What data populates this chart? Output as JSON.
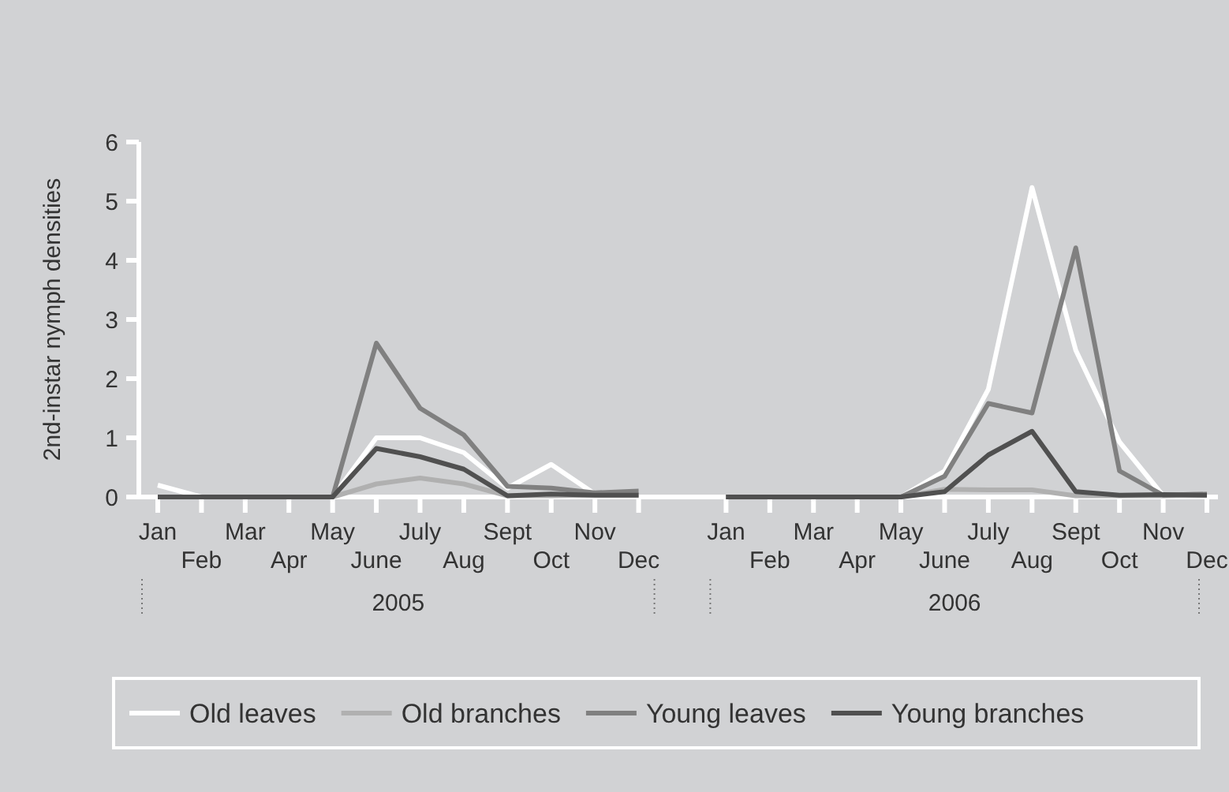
{
  "chart_data": {
    "type": "line",
    "ylabel": "2nd-instar nymph densities",
    "categories": [
      "Jan",
      "Feb",
      "Mar",
      "Apr",
      "May",
      "June",
      "July",
      "Aug",
      "Sept",
      "Oct",
      "Nov",
      "Dec",
      null,
      "Jan",
      "Feb",
      "Mar",
      "Apr",
      "May",
      "June",
      "July",
      "Aug",
      "Sept",
      "Oct",
      "Nov",
      "Dec"
    ],
    "series": [
      {
        "name": "Old leaves",
        "color": "#ffffff",
        "values": [
          0.2,
          0,
          0,
          0,
          0,
          1.0,
          1.0,
          0.75,
          0.15,
          0.55,
          0.05,
          0.05,
          null,
          0,
          0,
          0,
          0,
          0,
          0.44,
          1.82,
          5.23,
          2.48,
          0.93,
          0.02,
          0.05
        ]
      },
      {
        "name": "Old branches",
        "color": "#b0b0b0",
        "values": [
          0,
          0,
          0,
          0,
          0,
          0.22,
          0.32,
          0.22,
          0.02,
          0.02,
          0.03,
          0.03,
          null,
          0,
          0,
          0,
          0,
          0,
          0.13,
          0.12,
          0.12,
          0.02,
          0.02,
          0.02,
          0.03
        ]
      },
      {
        "name": "Young leaves",
        "color": "#808080",
        "values": [
          0,
          0,
          0,
          0,
          0,
          2.6,
          1.5,
          1.05,
          0.18,
          0.15,
          0.07,
          0.1,
          null,
          0,
          0,
          0,
          0,
          0,
          0.35,
          1.58,
          1.42,
          4.21,
          0.44,
          0.03,
          0.05
        ]
      },
      {
        "name": "Young branches",
        "color": "#505050",
        "values": [
          0,
          0,
          0,
          0,
          0,
          0.82,
          0.68,
          0.47,
          0.02,
          0.05,
          0.03,
          0.03,
          null,
          0,
          0,
          0,
          0,
          0,
          0.09,
          0.71,
          1.11,
          0.09,
          0.03,
          0.04,
          0.03
        ]
      }
    ],
    "ylim": [
      0,
      6
    ],
    "yticks": [
      0,
      1,
      2,
      3,
      4,
      5,
      6
    ],
    "grid": false,
    "legend": "bottom",
    "marker": "none",
    "line_style": "solid",
    "annotations": [
      "2005",
      "2006"
    ]
  }
}
